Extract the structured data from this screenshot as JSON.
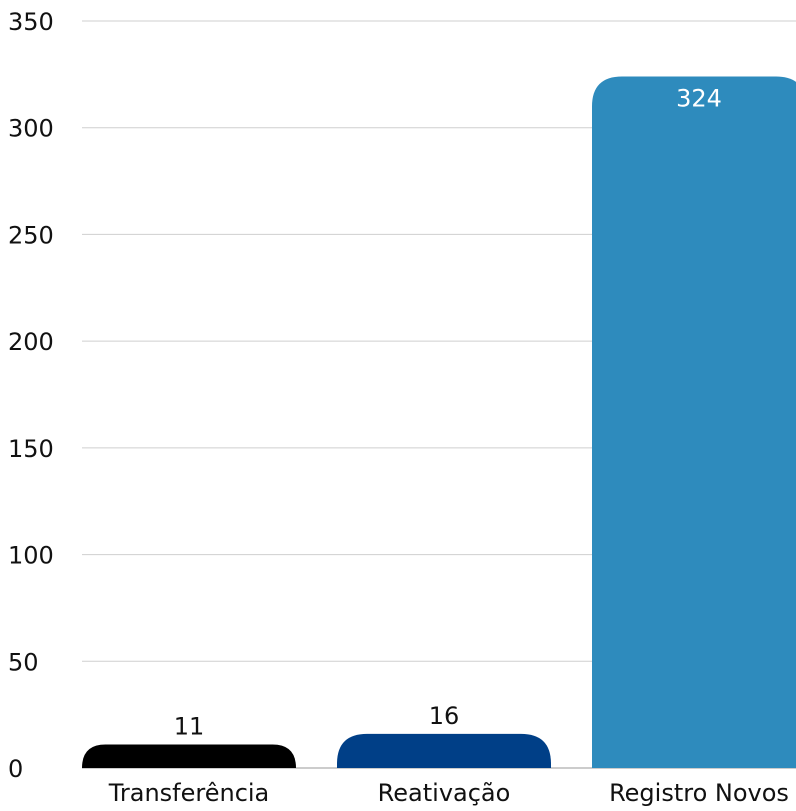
{
  "chart_data": {
    "type": "bar",
    "categories": [
      "Transferência",
      "Reativação",
      "Registro Novos"
    ],
    "values": [
      11,
      16,
      324
    ],
    "data_labels": [
      "11",
      "16",
      "324"
    ],
    "title": "",
    "xlabel": "",
    "ylabel": "",
    "ylim": [
      0,
      350
    ],
    "yticks": [
      0,
      50,
      100,
      150,
      200,
      250,
      300,
      350
    ],
    "ytick_labels": [
      "0",
      "50",
      "100",
      "150",
      "200",
      "250",
      "300",
      "350"
    ],
    "grid": true,
    "legend": "none",
    "colors": [
      "#000000",
      "#003f87",
      "#2e8bbd"
    ],
    "label_colors": [
      "#111111",
      "#111111",
      "#ffffff"
    ]
  }
}
